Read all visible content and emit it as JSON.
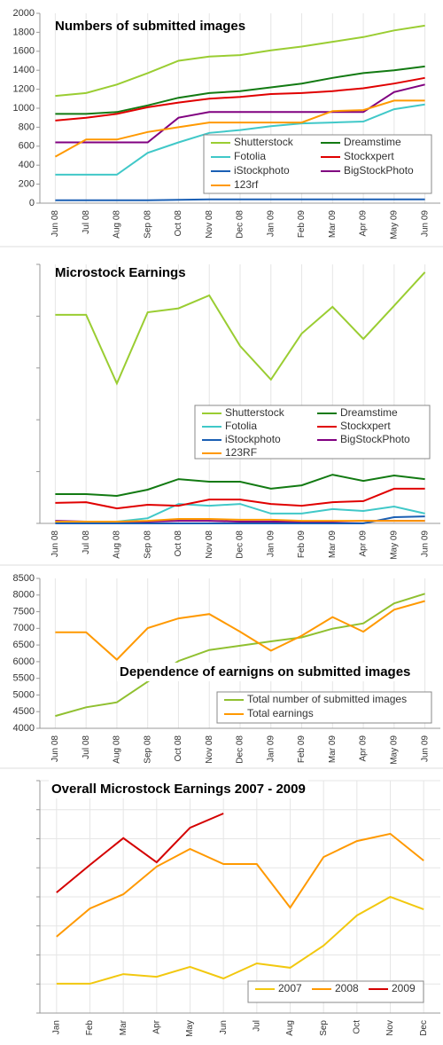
{
  "chart_data": [
    {
      "type": "line",
      "title": "Numbers of submitted images",
      "categories": [
        "Jun 08",
        "Jul 08",
        "Aug 08",
        "Sep 08",
        "Oct 08",
        "Nov 08",
        "Dec 08",
        "Jan 09",
        "Feb 09",
        "Mar 09",
        "Apr 09",
        "May 09",
        "Jun 09"
      ],
      "ylim": [
        0,
        2000
      ],
      "yticks": [
        0,
        200,
        400,
        600,
        800,
        1000,
        1200,
        1400,
        1600,
        1800,
        2000
      ],
      "ytick_labels": true,
      "xgrid": true,
      "ygrid": false,
      "series": [
        {
          "name": "Shutterstock",
          "color": "#9acd32",
          "values": [
            1130,
            1160,
            1250,
            1370,
            1500,
            1545,
            1560,
            1610,
            1650,
            1700,
            1750,
            1820,
            1870
          ]
        },
        {
          "name": "Dreamstime",
          "color": "#127a12",
          "values": [
            940,
            940,
            960,
            1030,
            1110,
            1160,
            1180,
            1220,
            1260,
            1320,
            1370,
            1400,
            1440
          ]
        },
        {
          "name": "Fotolia",
          "color": "#40c8c8",
          "values": [
            300,
            300,
            300,
            530,
            640,
            740,
            770,
            810,
            840,
            850,
            860,
            990,
            1040
          ]
        },
        {
          "name": "Stockxpert",
          "color": "#e00000",
          "values": [
            870,
            900,
            940,
            1010,
            1060,
            1100,
            1120,
            1150,
            1160,
            1180,
            1210,
            1260,
            1320
          ]
        },
        {
          "name": "iStockphoto",
          "color": "#1a5fb4",
          "values": [
            30,
            30,
            30,
            30,
            35,
            40,
            40,
            40,
            40,
            40,
            40,
            40,
            40
          ]
        },
        {
          "name": "BigStockPhoto",
          "color": "#800080",
          "values": [
            640,
            640,
            640,
            640,
            900,
            960,
            960,
            960,
            960,
            960,
            960,
            1170,
            1250
          ]
        },
        {
          "name": "123rf",
          "color": "#ff9900",
          "values": [
            490,
            670,
            670,
            750,
            800,
            850,
            850,
            850,
            850,
            970,
            980,
            1080,
            1080
          ]
        }
      ]
    },
    {
      "type": "line",
      "title": "Microstock Earnings",
      "categories": [
        "Jun 08",
        "Jul 08",
        "Aug 08",
        "Sep 08",
        "Oct 08",
        "Nov 08",
        "Dec 08",
        "Jan 09",
        "Feb 09",
        "Mar 09",
        "Apr 09",
        "May 09",
        "Jun 09"
      ],
      "ylim": [
        0,
        100
      ],
      "yticks": [
        0,
        20,
        40,
        60,
        80,
        100
      ],
      "ytick_labels": false,
      "xgrid": true,
      "ygrid": false,
      "series": [
        {
          "name": "Shutterstock",
          "color": "#9acd32",
          "values": [
            80.5,
            80.5,
            54,
            81.5,
            83,
            88,
            68.5,
            55.5,
            73.3,
            83.6,
            71.2,
            84,
            97
          ]
        },
        {
          "name": "Dreamstime",
          "color": "#127a12",
          "values": [
            11.3,
            11.3,
            10.6,
            13,
            17.1,
            16.1,
            16.1,
            13.4,
            14.7,
            18.8,
            16.4,
            18.5,
            17.1
          ]
        },
        {
          "name": "Fotolia",
          "color": "#40c8c8",
          "values": [
            0.7,
            0.7,
            0.7,
            2,
            7.5,
            6.8,
            7.5,
            3.8,
            3.8,
            5.5,
            4.8,
            6.5,
            3.8
          ]
        },
        {
          "name": "Stockxpert",
          "color": "#e00000",
          "values": [
            7.9,
            8.2,
            5.8,
            7.2,
            6.8,
            9.2,
            9.2,
            7.5,
            6.8,
            8.2,
            8.6,
            13.4,
            13.4
          ]
        },
        {
          "name": "iStockphoto",
          "color": "#1a5fb4",
          "values": [
            0,
            0,
            0,
            0,
            0,
            0,
            0,
            0,
            0,
            0,
            0,
            2.4,
            2.7
          ]
        },
        {
          "name": "BigStockPhoto",
          "color": "#800080",
          "values": [
            1,
            0.7,
            0.7,
            0.7,
            1,
            1,
            0.7,
            0.7,
            0.7,
            0.7,
            1,
            1,
            1
          ]
        },
        {
          "name": "123RF",
          "color": "#ff9900",
          "values": [
            0.7,
            0.7,
            0.7,
            1,
            1.7,
            1.7,
            1.4,
            1.4,
            1,
            1,
            1,
            1,
            1
          ]
        }
      ]
    },
    {
      "type": "line",
      "title": "Dependence of earnigns on submitted images",
      "categories": [
        "Jun 08",
        "Jul 08",
        "Aug 08",
        "Sep 08",
        "Oct 08",
        "Nov 08",
        "Dec 08",
        "Jan 09",
        "Feb 09",
        "Mar 09",
        "Apr 09",
        "May 09",
        "Jun 09"
      ],
      "ylim": [
        4000,
        8500
      ],
      "yticks": [
        4000,
        4500,
        5000,
        5500,
        6000,
        6500,
        7000,
        7500,
        8000,
        8500
      ],
      "ytick_labels": true,
      "xgrid": true,
      "ygrid": false,
      "series": [
        {
          "name": "Total number of submitted images",
          "color": "#90c030",
          "values": [
            4370,
            4630,
            4780,
            5400,
            6020,
            6350,
            6480,
            6610,
            6730,
            6990,
            7150,
            7750,
            8040
          ]
        },
        {
          "name": "Total earnings",
          "color": "#ff9900",
          "values": [
            6880,
            6880,
            6060,
            7010,
            7300,
            7430,
            6900,
            6330,
            6780,
            7340,
            6900,
            7560,
            7820
          ]
        }
      ]
    },
    {
      "type": "line",
      "title": "Overall Microstock Earnings 2007 - 2009",
      "categories": [
        "Jan",
        "Feb",
        "Mar",
        "Apr",
        "May",
        "Jun",
        "Jul",
        "Aug",
        "Sep",
        "Oct",
        "Nov",
        "Dec"
      ],
      "ylim": [
        0,
        80
      ],
      "yticks": [
        0,
        10,
        20,
        30,
        40,
        50,
        60,
        70,
        80
      ],
      "ytick_labels": false,
      "xgrid": true,
      "ygrid": true,
      "series": [
        {
          "name": "2007",
          "color": "#f2c80f",
          "values": [
            10.1,
            10.1,
            13.4,
            12.5,
            15.9,
            11.9,
            17.1,
            15.6,
            23.2,
            33.6,
            40,
            35.7
          ]
        },
        {
          "name": "2008",
          "color": "#ff9900",
          "values": [
            26.3,
            36,
            40.9,
            50.4,
            56.5,
            51.3,
            51.3,
            36.3,
            53.7,
            59.2,
            61.7,
            52.5
          ]
        },
        {
          "name": "2009",
          "color": "#d40000",
          "values": [
            41.5,
            51,
            60.2,
            51.9,
            63.8,
            68.7,
            null,
            null,
            null,
            null,
            null,
            null
          ]
        }
      ]
    }
  ]
}
